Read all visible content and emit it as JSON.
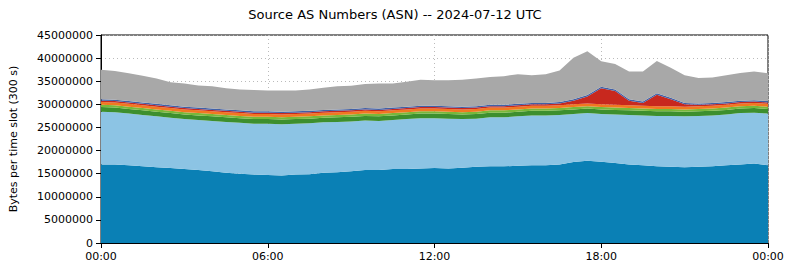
{
  "chart_data": {
    "type": "area",
    "title": "Source AS Numbers (ASN) -- 2024-07-12 UTC",
    "y_label": "Bytes per time slot (300 s)",
    "categories": [
      "00:00",
      null,
      null,
      null,
      null,
      null,
      null,
      null,
      null,
      null,
      null,
      null,
      "06:00",
      null,
      null,
      null,
      null,
      null,
      null,
      null,
      null,
      null,
      null,
      null,
      "12:00",
      null,
      null,
      null,
      null,
      null,
      null,
      null,
      null,
      null,
      null,
      null,
      "18:00",
      null,
      null,
      null,
      null,
      null,
      null,
      null,
      null,
      null,
      null,
      null,
      "00:00"
    ],
    "stacked": true,
    "grid": true,
    "ylim": [
      0,
      45000000
    ],
    "yticks": [
      0,
      5000000,
      10000000,
      15000000,
      20000000,
      25000000,
      30000000,
      35000000,
      40000000,
      45000000
    ],
    "series": [
      {
        "color": "#0a80b5",
        "values": [
          17000000,
          17000000,
          16800000,
          16600000,
          16400000,
          16200000,
          16000000,
          15800000,
          15500000,
          15200000,
          15000000,
          14800000,
          14700000,
          14600000,
          14800000,
          14900000,
          15200000,
          15300000,
          15500000,
          15800000,
          15800000,
          16000000,
          16000000,
          16100000,
          16200000,
          16100000,
          16300000,
          16500000,
          16600000,
          16600000,
          16700000,
          16800000,
          16800000,
          17000000,
          17500000,
          17800000,
          17600000,
          17300000,
          17000000,
          16800000,
          16600000,
          16500000,
          16400000,
          16500000,
          16600000,
          16800000,
          17000000,
          17200000,
          16800000
        ]
      },
      {
        "color": "#8cc4e4",
        "values": [
          11400000,
          11300000,
          11200000,
          11100000,
          11000000,
          10900000,
          10800000,
          10800000,
          10900000,
          11000000,
          11000000,
          11000000,
          11100000,
          11100000,
          11000000,
          11000000,
          10900000,
          10900000,
          10800000,
          10700000,
          10600000,
          10600000,
          10800000,
          10900000,
          10800000,
          10800000,
          10500000,
          10400000,
          10600000,
          10600000,
          10700000,
          10800000,
          10800000,
          10700000,
          10400000,
          10300000,
          10300000,
          10500000,
          10700000,
          10800000,
          10900000,
          11000000,
          11000000,
          11000000,
          11000000,
          11000000,
          11100000,
          11000000,
          11200000
        ]
      },
      {
        "color": "#3d8f2e",
        "values": [
          1000000,
          1000000,
          1000000,
          1000000,
          1000000,
          1000000,
          1000000,
          1000000,
          1000000,
          1000000,
          1000000,
          1000000,
          1000000,
          1000000,
          1000000,
          1000000,
          1000000,
          1000000,
          1000000,
          1000000,
          1000000,
          1000000,
          1000000,
          1000000,
          1000000,
          1000000,
          1000000,
          1000000,
          1000000,
          1000000,
          1000000,
          1000000,
          1000000,
          1000000,
          1000000,
          1000000,
          1000000,
          1000000,
          1000000,
          1000000,
          1000000,
          1000000,
          1000000,
          1000000,
          1000000,
          1000000,
          1000000,
          1000000,
          1000000
        ]
      },
      {
        "color": "#78b83a",
        "values": [
          500000,
          500000,
          500000,
          500000,
          500000,
          500000,
          500000,
          500000,
          500000,
          500000,
          500000,
          500000,
          500000,
          500000,
          500000,
          500000,
          500000,
          500000,
          500000,
          500000,
          500000,
          500000,
          500000,
          500000,
          500000,
          500000,
          500000,
          500000,
          500000,
          500000,
          500000,
          500000,
          500000,
          500000,
          500000,
          500000,
          500000,
          500000,
          500000,
          500000,
          500000,
          500000,
          500000,
          500000,
          500000,
          500000,
          500000,
          500000,
          500000
        ]
      },
      {
        "color": "#f07820",
        "values": [
          600000,
          600000,
          600000,
          600000,
          600000,
          600000,
          600000,
          600000,
          600000,
          600000,
          600000,
          600000,
          600000,
          600000,
          600000,
          600000,
          600000,
          600000,
          600000,
          600000,
          600000,
          600000,
          600000,
          600000,
          600000,
          600000,
          600000,
          600000,
          600000,
          600000,
          600000,
          600000,
          600000,
          600000,
          600000,
          600000,
          600000,
          600000,
          600000,
          600000,
          600000,
          600000,
          600000,
          600000,
          600000,
          600000,
          600000,
          600000,
          600000
        ]
      },
      {
        "color": "#c8281e",
        "values": [
          300000,
          300000,
          300000,
          300000,
          300000,
          300000,
          300000,
          300000,
          300000,
          300000,
          300000,
          300000,
          300000,
          300000,
          300000,
          300000,
          300000,
          300000,
          300000,
          300000,
          300000,
          300000,
          300000,
          300000,
          300000,
          300000,
          300000,
          300000,
          300000,
          300000,
          300000,
          300000,
          300000,
          400000,
          800000,
          1500000,
          3500000,
          3000000,
          1000000,
          600000,
          2500000,
          1500000,
          500000,
          300000,
          300000,
          300000,
          300000,
          300000,
          300000
        ]
      },
      {
        "color": "#4060a8",
        "values": [
          300000,
          300000,
          300000,
          300000,
          300000,
          300000,
          300000,
          300000,
          300000,
          300000,
          300000,
          300000,
          300000,
          300000,
          300000,
          300000,
          300000,
          300000,
          300000,
          300000,
          300000,
          300000,
          300000,
          300000,
          300000,
          300000,
          300000,
          300000,
          300000,
          300000,
          300000,
          300000,
          300000,
          300000,
          300000,
          300000,
          300000,
          300000,
          300000,
          300000,
          300000,
          300000,
          300000,
          300000,
          300000,
          300000,
          300000,
          300000,
          300000
        ]
      },
      {
        "color": "#a8a8a8",
        "values": [
          6400000,
          6200000,
          6000000,
          5800000,
          5500000,
          5000000,
          5000000,
          4800000,
          4800000,
          4600000,
          4500000,
          4600000,
          4500000,
          4600000,
          4500000,
          4600000,
          4800000,
          5000000,
          5000000,
          5200000,
          5400000,
          5200000,
          5400000,
          5600000,
          5500000,
          5600000,
          5800000,
          6000000,
          6000000,
          6200000,
          6400000,
          6000000,
          6200000,
          6800000,
          9000000,
          9500000,
          5500000,
          5500000,
          6000000,
          6500000,
          7000000,
          6500000,
          6000000,
          5500000,
          5500000,
          5800000,
          6000000,
          6200000,
          6000000
        ]
      }
    ]
  }
}
